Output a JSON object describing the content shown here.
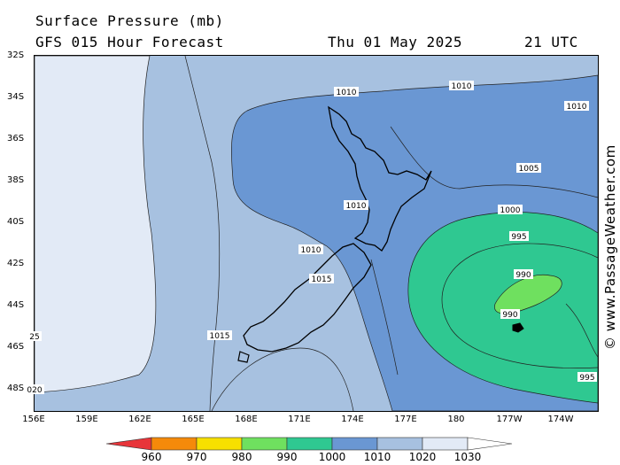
{
  "title": "Surface Pressure (mb)",
  "subtitle": "GFS 015 Hour Forecast",
  "date": "Thu 01 May 2025",
  "time": "21 UTC",
  "credit": "© www.PassageWeather.com",
  "lat_labels": [
    "32S",
    "34S",
    "36S",
    "38S",
    "40S",
    "42S",
    "44S",
    "46S",
    "48S"
  ],
  "lon_labels": [
    "156E",
    "159E",
    "162E",
    "165E",
    "168E",
    "171E",
    "174E",
    "177E",
    "180",
    "177W",
    "174W"
  ],
  "isobar_labels": [
    "1010",
    "1010",
    "1010",
    "1005",
    "1010",
    "1000",
    "995",
    "1010",
    "990",
    "1015",
    "1015",
    "990",
    "25",
    "995",
    "020"
  ],
  "legend": {
    "values": [
      "960",
      "970",
      "980",
      "990",
      "1000",
      "1010",
      "1020",
      "1030"
    ],
    "colors": [
      "#e8353a",
      "#f58a0a",
      "#f7e000",
      "#6fe05f",
      "#2fc891",
      "#6a97d3",
      "#a7c1e0",
      "#e2eaf6"
    ]
  },
  "fill_colors": {
    "low990": "#6fe05f",
    "low995": "#2fc891",
    "mid1005": "#6a97d3",
    "base1015": "#a7c1e0",
    "high1020": "#e2eaf6",
    "land": "none"
  }
}
